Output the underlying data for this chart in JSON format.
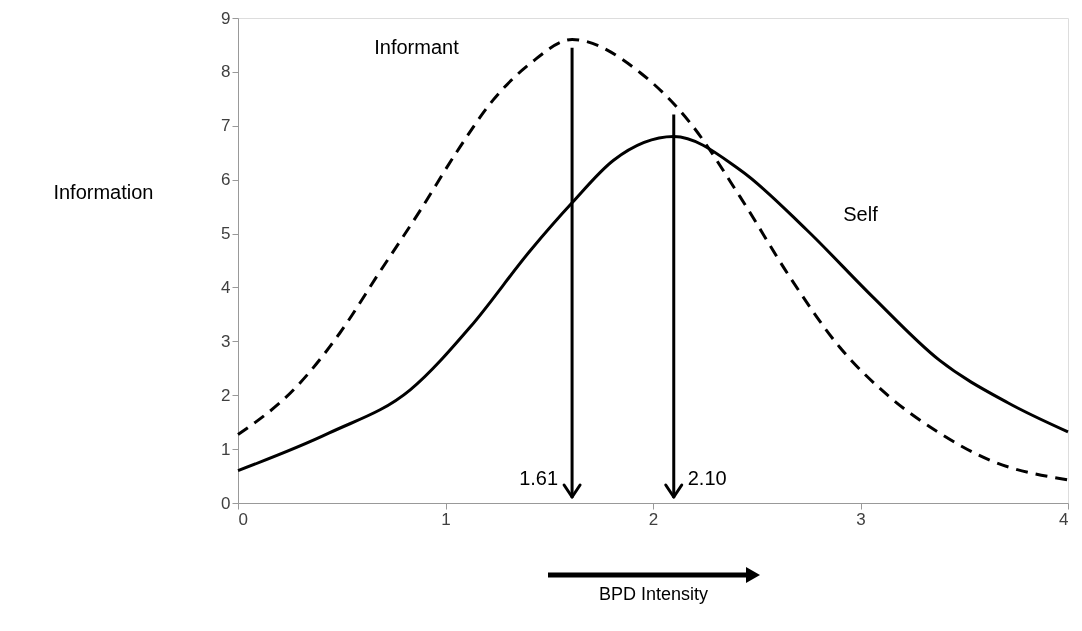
{
  "chart_data": {
    "type": "line",
    "xlabel": "BPD Intensity",
    "ylabel": "Information",
    "xlim": [
      0,
      4
    ],
    "xticks": [
      0,
      1,
      2,
      3,
      4
    ],
    "ylim": [
      0,
      9
    ],
    "yticks": [
      0,
      1,
      2,
      3,
      4,
      5,
      6,
      7,
      8,
      9
    ],
    "grid": false,
    "marker": "none",
    "ref_lines": [
      {
        "axis": "x",
        "value": 1.61,
        "label": "1.61",
        "color": "#000000"
      },
      {
        "axis": "x",
        "value": 2.1,
        "label": "2.10",
        "color": "#000000"
      }
    ],
    "series": [
      {
        "name": "Informant",
        "color": "#000000",
        "line_style": "dashed",
        "x": [
          0,
          0.28,
          0.49,
          0.68,
          0.88,
          1.05,
          1.23,
          1.41,
          1.61,
          1.94,
          2.18,
          2.42,
          2.66,
          2.9,
          3.14,
          3.38,
          3.62,
          4
        ],
        "values": [
          1.27,
          2.15,
          3.15,
          4.27,
          5.44,
          6.49,
          7.48,
          8.16,
          8.6,
          7.98,
          7.05,
          5.68,
          4.19,
          2.89,
          1.97,
          1.3,
          0.8,
          0.43
        ]
      },
      {
        "name": "Self",
        "color": "#000000",
        "line_style": "solid",
        "x": [
          0,
          0.44,
          0.83,
          1.12,
          1.41,
          1.61,
          1.81,
          2.1,
          2.42,
          2.74,
          3.06,
          3.38,
          3.71,
          4
        ],
        "values": [
          0.6,
          1.3,
          2.1,
          3.27,
          4.69,
          5.57,
          6.36,
          6.8,
          6.18,
          5.07,
          3.82,
          2.65,
          1.86,
          1.32
        ]
      }
    ]
  }
}
